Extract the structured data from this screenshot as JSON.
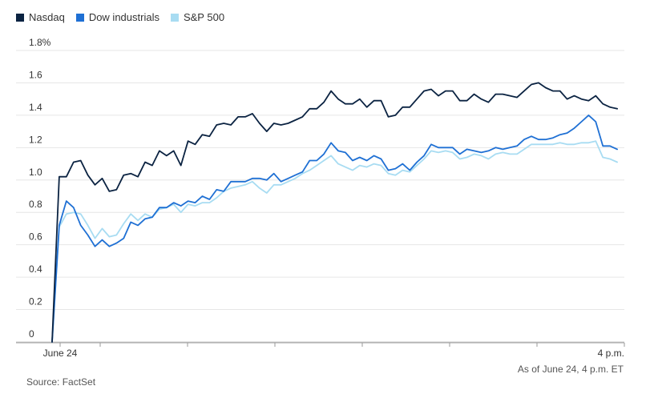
{
  "legend": [
    {
      "name": "Nasdaq",
      "color": "#0b2342"
    },
    {
      "name": "Dow industrials",
      "color": "#1f70d4"
    },
    {
      "name": "S&P 500",
      "color": "#a8dcf2"
    }
  ],
  "footer": {
    "source": "Source: FactSet",
    "as_of": "As of June 24, 4 p.m. ET"
  },
  "chart_data": {
    "type": "line",
    "y_tick_labels": [
      "0",
      "0.2",
      "0.4",
      "0.6",
      "0.8",
      "1.0",
      "1.2",
      "1.4",
      "1.6",
      "1.8%"
    ],
    "y_ticks": [
      0,
      0.2,
      0.4,
      0.6,
      0.8,
      1.0,
      1.2,
      1.4,
      1.6,
      1.8
    ],
    "ylim": [
      0,
      1.8
    ],
    "x_labels": [
      "June 24",
      "4 p.m."
    ],
    "x_range": [
      0,
      80
    ],
    "grid": true,
    "legend_placement": "top-left",
    "series": [
      {
        "name": "Nasdaq",
        "color": "#0b2342",
        "values": [
          0.0,
          1.02,
          1.02,
          1.11,
          1.12,
          1.03,
          0.97,
          1.01,
          0.93,
          0.94,
          1.03,
          1.04,
          1.02,
          1.11,
          1.09,
          1.18,
          1.15,
          1.18,
          1.09,
          1.24,
          1.22,
          1.28,
          1.27,
          1.34,
          1.35,
          1.34,
          1.39,
          1.39,
          1.41,
          1.35,
          1.3,
          1.35,
          1.34,
          1.35,
          1.37,
          1.39,
          1.44,
          1.44,
          1.48,
          1.55,
          1.5,
          1.47,
          1.47,
          1.5,
          1.45,
          1.49,
          1.49,
          1.39,
          1.4,
          1.45,
          1.45,
          1.5,
          1.55,
          1.56,
          1.52,
          1.55,
          1.55,
          1.49,
          1.49,
          1.53,
          1.5,
          1.48,
          1.53,
          1.53,
          1.52,
          1.51,
          1.55,
          1.59,
          1.6,
          1.57,
          1.55,
          1.55,
          1.5,
          1.52,
          1.5,
          1.49,
          1.52,
          1.47,
          1.45,
          1.44
        ]
      },
      {
        "name": "Dow industrials",
        "color": "#1f70d4",
        "values": [
          0.0,
          0.72,
          0.87,
          0.83,
          0.72,
          0.66,
          0.59,
          0.63,
          0.59,
          0.61,
          0.64,
          0.74,
          0.72,
          0.76,
          0.77,
          0.83,
          0.83,
          0.86,
          0.84,
          0.87,
          0.86,
          0.9,
          0.88,
          0.94,
          0.93,
          0.99,
          0.99,
          0.99,
          1.01,
          1.01,
          1.0,
          1.04,
          0.99,
          1.01,
          1.03,
          1.05,
          1.12,
          1.12,
          1.16,
          1.23,
          1.18,
          1.17,
          1.12,
          1.14,
          1.12,
          1.15,
          1.13,
          1.06,
          1.07,
          1.1,
          1.06,
          1.11,
          1.15,
          1.22,
          1.2,
          1.2,
          1.2,
          1.16,
          1.19,
          1.18,
          1.17,
          1.18,
          1.2,
          1.19,
          1.2,
          1.21,
          1.25,
          1.27,
          1.25,
          1.25,
          1.26,
          1.28,
          1.29,
          1.32,
          1.36,
          1.4,
          1.36,
          1.21,
          1.21,
          1.19
        ]
      },
      {
        "name": "S&P 500",
        "color": "#a8dcf2",
        "values": [
          0.0,
          0.71,
          0.79,
          0.8,
          0.79,
          0.72,
          0.64,
          0.7,
          0.65,
          0.66,
          0.73,
          0.79,
          0.75,
          0.79,
          0.77,
          0.82,
          0.83,
          0.85,
          0.8,
          0.85,
          0.84,
          0.86,
          0.86,
          0.89,
          0.93,
          0.95,
          0.96,
          0.97,
          0.99,
          0.95,
          0.92,
          0.97,
          0.97,
          0.99,
          1.01,
          1.04,
          1.06,
          1.09,
          1.12,
          1.15,
          1.1,
          1.08,
          1.06,
          1.09,
          1.08,
          1.1,
          1.09,
          1.04,
          1.03,
          1.06,
          1.05,
          1.09,
          1.13,
          1.18,
          1.17,
          1.18,
          1.17,
          1.13,
          1.14,
          1.16,
          1.15,
          1.13,
          1.16,
          1.17,
          1.16,
          1.16,
          1.19,
          1.22,
          1.22,
          1.22,
          1.22,
          1.23,
          1.22,
          1.22,
          1.23,
          1.23,
          1.24,
          1.14,
          1.13,
          1.11
        ]
      }
    ]
  }
}
